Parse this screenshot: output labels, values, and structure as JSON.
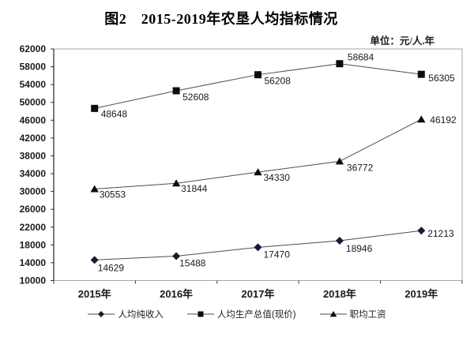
{
  "title": "图2　2015-2019年农垦人均指标情况",
  "unit_label": "单位：元/人.年",
  "chart_data": {
    "type": "line",
    "title": "图2　2015-2019年农垦人均指标情况",
    "unit": "单位：元/人.年",
    "categories": [
      "2015年",
      "2016年",
      "2017年",
      "2018年",
      "2019年"
    ],
    "series": [
      {
        "name": "人均纯收入",
        "marker": "diamond",
        "color": "#191933",
        "values": [
          14629,
          15488,
          17470,
          18946,
          21213
        ],
        "label_offsets": [
          [
            4,
            14
          ],
          [
            4,
            13
          ],
          [
            7,
            13
          ],
          [
            8,
            14
          ],
          [
            8,
            8
          ]
        ]
      },
      {
        "name": "人均生产总值(现价)",
        "marker": "square",
        "color": "#0d0d0d",
        "values": [
          48648,
          52608,
          56208,
          58684,
          56305
        ],
        "label_offsets": [
          [
            8,
            11
          ],
          [
            8,
            12
          ],
          [
            8,
            12
          ],
          [
            10,
            -4
          ],
          [
            9,
            9
          ]
        ]
      },
      {
        "name": "职均工资",
        "marker": "triangle",
        "color": "#0d0d0d",
        "values": [
          30553,
          31844,
          34330,
          36772,
          46192
        ],
        "label_offsets": [
          [
            6,
            11
          ],
          [
            6,
            11
          ],
          [
            7,
            11
          ],
          [
            9,
            12
          ],
          [
            11,
            5
          ]
        ]
      }
    ],
    "ylim": [
      10000,
      62000
    ],
    "ytick_step": 4000,
    "xlabel": "",
    "ylabel": "",
    "grid": false,
    "legend_position": "bottom",
    "line_color": "#4d4d4d",
    "axis_color": "#333333",
    "plot_border_color": "#a6a6a6"
  }
}
